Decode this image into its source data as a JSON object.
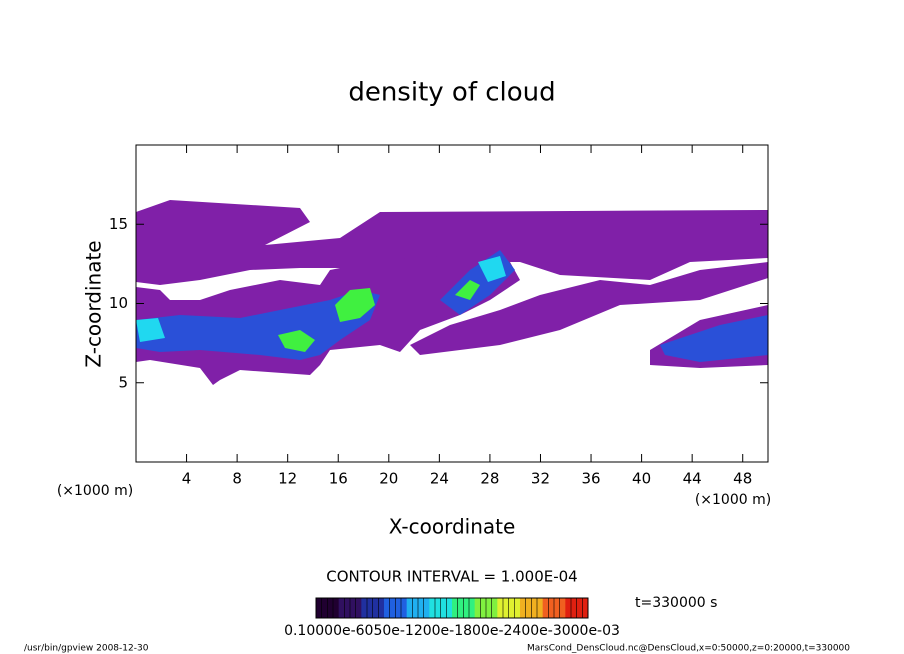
{
  "chart_data": {
    "type": "contour",
    "title": "density of cloud",
    "x_label": "X-coordinate",
    "y_label": "Z-coordinate",
    "x_unit": "(×1000 m)",
    "y_unit": "(×1000 m)",
    "xlim": [
      0,
      50
    ],
    "ylim": [
      0,
      20
    ],
    "xticks": [
      4,
      8,
      12,
      16,
      20,
      24,
      28,
      32,
      36,
      40,
      44,
      48
    ],
    "yticks": [
      5,
      10,
      15
    ],
    "contour_interval": "CONTOUR INTERVAL = 1.000E-04",
    "time": "t=330000 s",
    "colorbar_label": "0.10000e-6050e-1200e-1800e-2400e-3000e-03",
    "colorbar_colors": [
      "#200030",
      "#301060",
      "#2030a0",
      "#2060e0",
      "#20b0f0",
      "#20e0e0",
      "#30f080",
      "#80f040",
      "#e0f030",
      "#f0b020",
      "#f06020",
      "#e02010"
    ],
    "footer_left": "/usr/bin/gpview   2008-12-30",
    "footer_right": "MarsCond_DensCloud.nc@DensCloud,x=0:50000,z=0:20000,t=330000"
  }
}
